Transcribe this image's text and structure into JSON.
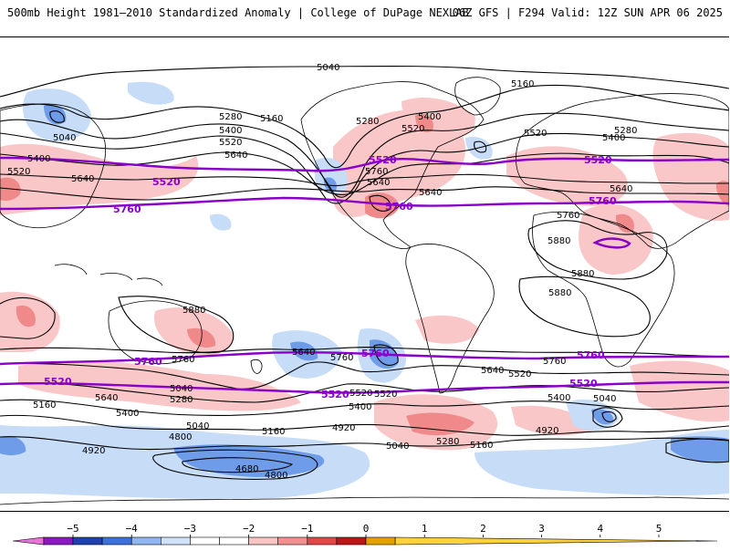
{
  "header": {
    "title_left": "500mb Height 1981–2010 Standardized Anomaly | College of DuPage NEXLAB",
    "title_right": "06Z GFS | F294 Valid: 12Z SUN APR 06 2025"
  },
  "map": {
    "height_labels": [
      "5040",
      "5160",
      "5280",
      "5400",
      "5520",
      "5640",
      "5040",
      "5400",
      "5520",
      "5640",
      "5160",
      "5280",
      "5400",
      "5520",
      "5640",
      "5760",
      "5640",
      "5280",
      "5400",
      "5520",
      "5640",
      "5760",
      "5880",
      "5880",
      "5880",
      "5640",
      "5760",
      "5760",
      "5640",
      "5520",
      "5280",
      "5400",
      "5160",
      "5040",
      "4920",
      "4800",
      "4680",
      "4800",
      "5520",
      "5400",
      "5040",
      "4920",
      "5160",
      "5280",
      "5040",
      "5160",
      "5520",
      "5400",
      "5760",
      "5880",
      "5640",
      "5040",
      "4920"
    ],
    "purple_labels": [
      "5520",
      "5760",
      "5520",
      "5760",
      "5520",
      "5520",
      "5760",
      "5760",
      "5760",
      "5520",
      "5520",
      "5760"
    ],
    "colors": {
      "land_outline": "#000000",
      "contour": "#000000",
      "key_contour": "#8a00c8",
      "positive_anomaly_1": "#f9c7c7",
      "positive_anomaly_2": "#f08a8a",
      "negative_anomaly_1": "#c6dcf7",
      "negative_anomaly_2": "#6f9ce8"
    }
  },
  "colorbar": {
    "tick_labels": [
      "−5",
      "−4",
      "−3",
      "−2",
      "−1",
      "0",
      "1",
      "2",
      "3",
      "4",
      "5"
    ],
    "colors": [
      "#e873d8",
      "#8a18c4",
      "#1f3fb2",
      "#3e6fe0",
      "#8fb6f0",
      "#cfe2fa",
      "#ffffff",
      "#ffffff",
      "#f9c4c4",
      "#f58f8f",
      "#e04848",
      "#b81818",
      "#e6a000",
      "#ffd23a"
    ]
  }
}
